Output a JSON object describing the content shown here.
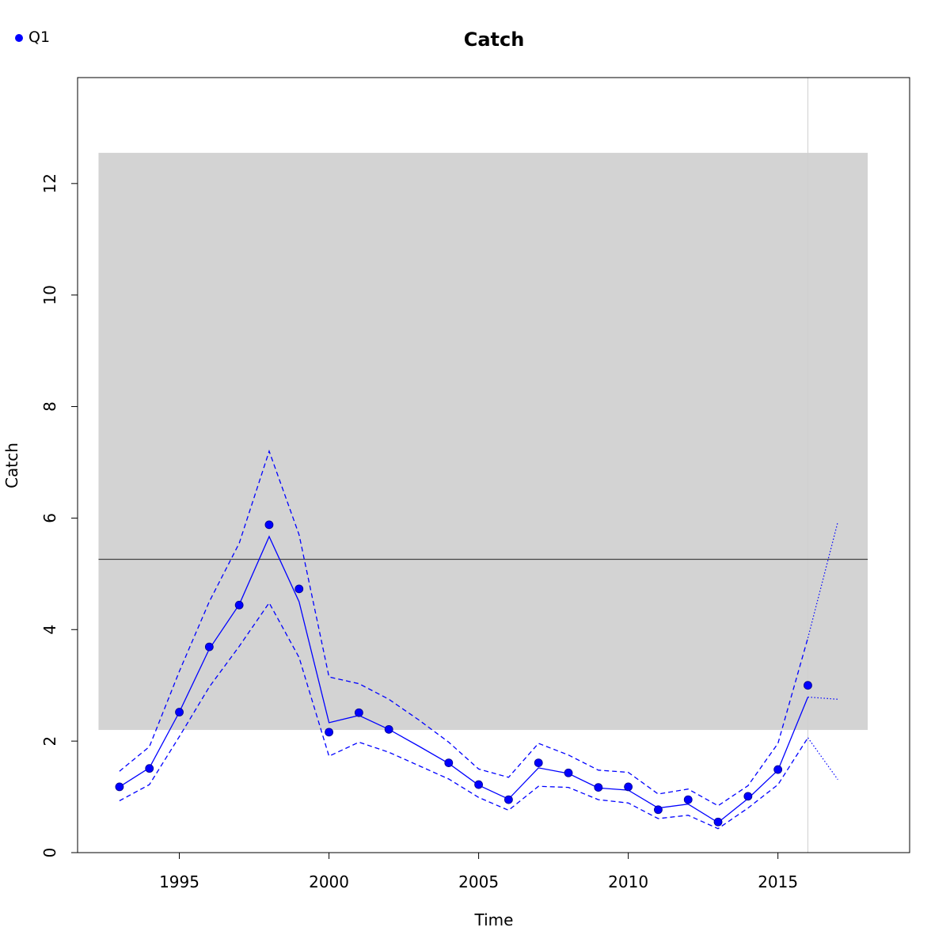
{
  "chart_data": {
    "type": "line",
    "title": "Catch",
    "xlabel": "Time",
    "ylabel": "Catch",
    "xlim": [
      1991.6,
      2019.4
    ],
    "ylim": [
      0,
      13.9
    ],
    "xticks": [
      1995,
      2000,
      2005,
      2010,
      2015
    ],
    "yticks": [
      0,
      2,
      4,
      6,
      8,
      10,
      12
    ],
    "grid": false,
    "legend_position": "top-left",
    "colors": {
      "series": "#0000ff",
      "points": "#0000ff",
      "band": "#d3d3d3",
      "mean_line": "#444444",
      "vline": "#cfcfcf",
      "axes": "#000000"
    },
    "band": {
      "x": [
        1992.3,
        2018.0
      ],
      "y": [
        2.2,
        12.55
      ]
    },
    "reference_line": {
      "y": 5.26,
      "x": [
        1992.3,
        2018.0
      ]
    },
    "vertical_line": {
      "x": 2016
    },
    "series": [
      {
        "name": "Q1",
        "type": "points",
        "x": [
          1993,
          1994,
          1995,
          1996,
          1997,
          1998,
          1999,
          2000,
          2001,
          2002,
          2004,
          2005,
          2006,
          2007,
          2008,
          2009,
          2010,
          2011,
          2012,
          2013,
          2014,
          2015,
          2016
        ],
        "values": [
          1.18,
          1.51,
          2.52,
          3.69,
          4.44,
          5.88,
          4.73,
          2.16,
          2.51,
          2.21,
          1.61,
          1.22,
          0.95,
          1.61,
          1.43,
          1.17,
          1.18,
          0.77,
          0.95,
          0.55,
          1.01,
          1.49,
          3.0
        ]
      },
      {
        "type": "line",
        "style": "solid",
        "x": [
          1993,
          1994,
          1995,
          1996,
          1997,
          1998,
          1999,
          2000,
          2001,
          2002,
          2003,
          2004,
          2005,
          2006,
          2007,
          2008,
          2009,
          2010,
          2011,
          2012,
          2013,
          2014,
          2015,
          2016
        ],
        "values": [
          1.18,
          1.52,
          2.52,
          3.65,
          4.45,
          5.67,
          4.5,
          2.33,
          2.46,
          2.21,
          1.91,
          1.6,
          1.21,
          0.96,
          1.52,
          1.42,
          1.16,
          1.12,
          0.8,
          0.87,
          0.54,
          0.97,
          1.48,
          2.79
        ]
      },
      {
        "type": "line",
        "style": "dashed",
        "x": [
          1993,
          1994,
          1995,
          1996,
          1997,
          1998,
          1999,
          2000,
          2001,
          2002,
          2003,
          2004,
          2005,
          2006,
          2007,
          2008,
          2009,
          2010,
          2011,
          2012,
          2013,
          2014,
          2015,
          2016
        ],
        "values": [
          1.46,
          1.9,
          3.25,
          4.5,
          5.55,
          7.2,
          5.7,
          3.15,
          3.03,
          2.75,
          2.38,
          1.98,
          1.5,
          1.35,
          1.96,
          1.75,
          1.48,
          1.44,
          1.05,
          1.14,
          0.84,
          1.2,
          1.96,
          3.85
        ]
      },
      {
        "type": "line",
        "style": "dashed",
        "x": [
          1993,
          1994,
          1995,
          1996,
          1997,
          1998,
          1999,
          2000,
          2001,
          2002,
          2003,
          2004,
          2005,
          2006,
          2007,
          2008,
          2009,
          2010,
          2011,
          2012,
          2013,
          2014,
          2015,
          2016
        ],
        "values": [
          0.93,
          1.22,
          2.08,
          2.97,
          3.7,
          4.48,
          3.5,
          1.73,
          1.98,
          1.8,
          1.56,
          1.32,
          0.99,
          0.76,
          1.19,
          1.17,
          0.95,
          0.89,
          0.61,
          0.67,
          0.43,
          0.8,
          1.22,
          2.06
        ]
      },
      {
        "type": "line",
        "style": "dotted",
        "x": [
          2016,
          2017
        ],
        "values": [
          2.79,
          2.75
        ]
      },
      {
        "type": "line",
        "style": "dotted",
        "x": [
          2016,
          2017
        ],
        "values": [
          3.85,
          5.93
        ]
      },
      {
        "type": "line",
        "style": "dotted",
        "x": [
          2016,
          2017
        ],
        "values": [
          2.06,
          1.31
        ]
      }
    ]
  }
}
